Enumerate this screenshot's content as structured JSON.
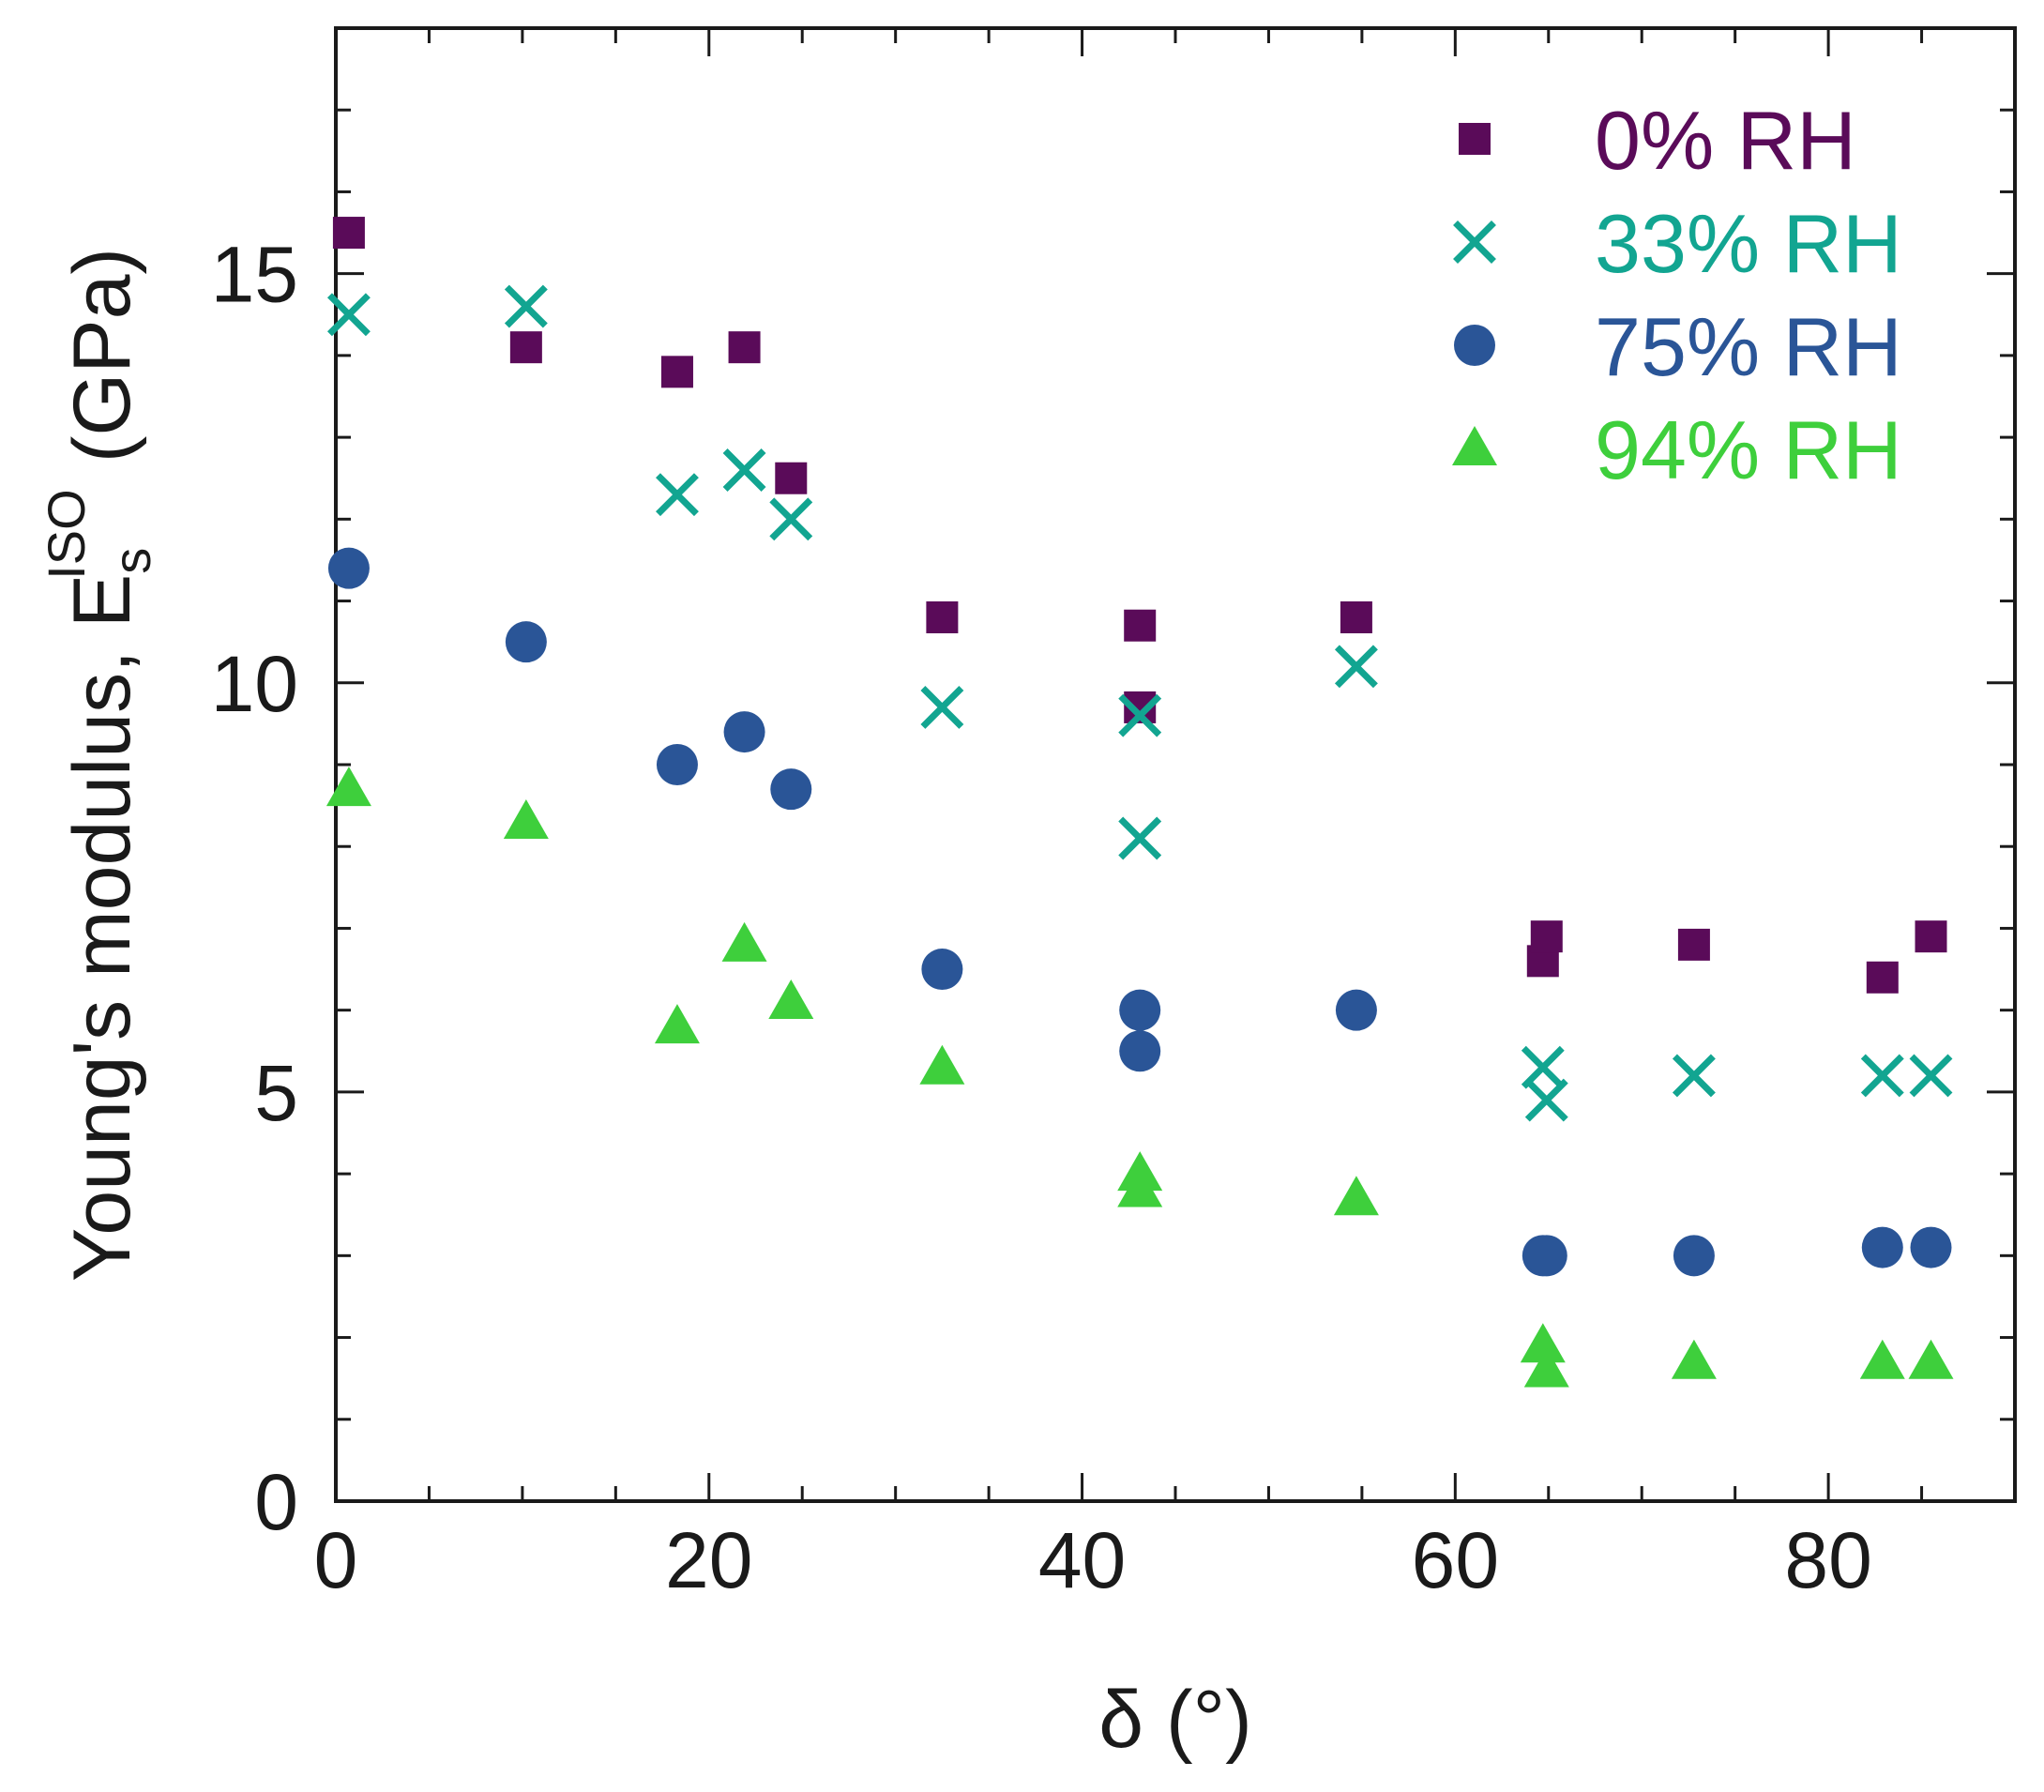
{
  "chart_data": {
    "type": "scatter",
    "title": "",
    "xlabel": "δ (°)",
    "ylabel": {
      "main": "Young's modulus,  E",
      "subscript": "s",
      "superscript": "ISO",
      "unit": "(GPa)"
    },
    "xlim": [
      0,
      90
    ],
    "ylim": [
      0,
      18
    ],
    "x_ticks": [
      0,
      20,
      40,
      60,
      80
    ],
    "x_tick_labels": [
      "0",
      "20",
      "40",
      "60",
      "80"
    ],
    "y_ticks": [
      0,
      5,
      10,
      15
    ],
    "y_tick_labels": [
      "0",
      "5",
      "10",
      "15"
    ],
    "grid": false,
    "legend_position": "top-right",
    "series": [
      {
        "name": "0% RH",
        "marker": "square",
        "color": "#5a0b59",
        "points": [
          [
            0.7,
            15.5
          ],
          [
            10.2,
            14.1
          ],
          [
            18.3,
            13.8
          ],
          [
            21.9,
            14.1
          ],
          [
            24.4,
            12.5
          ],
          [
            32.5,
            10.8
          ],
          [
            43.1,
            10.7
          ],
          [
            43.1,
            9.7
          ],
          [
            54.7,
            10.8
          ],
          [
            64.7,
            6.6
          ],
          [
            64.9,
            6.9
          ],
          [
            72.8,
            6.8
          ],
          [
            82.9,
            6.4
          ],
          [
            85.5,
            6.9
          ]
        ]
      },
      {
        "name": "33% RH",
        "marker": "x",
        "color": "#12a591",
        "points": [
          [
            0.7,
            14.5
          ],
          [
            10.2,
            14.6
          ],
          [
            18.3,
            12.3
          ],
          [
            21.9,
            12.6
          ],
          [
            24.4,
            12.0
          ],
          [
            32.5,
            9.7
          ],
          [
            43.1,
            9.6
          ],
          [
            43.1,
            8.1
          ],
          [
            54.7,
            10.2
          ],
          [
            64.7,
            5.3
          ],
          [
            64.9,
            4.9
          ],
          [
            72.8,
            5.2
          ],
          [
            82.9,
            5.2
          ],
          [
            85.5,
            5.2
          ]
        ]
      },
      {
        "name": "75% RH",
        "marker": "circle",
        "color": "#2a5597",
        "points": [
          [
            0.7,
            11.4
          ],
          [
            10.2,
            10.5
          ],
          [
            18.3,
            9.0
          ],
          [
            21.9,
            9.4
          ],
          [
            24.4,
            8.7
          ],
          [
            32.5,
            6.5
          ],
          [
            43.1,
            6.0
          ],
          [
            43.1,
            5.5
          ],
          [
            54.7,
            6.0
          ],
          [
            64.7,
            3.0
          ],
          [
            64.9,
            3.0
          ],
          [
            72.8,
            3.0
          ],
          [
            82.9,
            3.1
          ],
          [
            85.5,
            3.1
          ]
        ]
      },
      {
        "name": "94% RH",
        "marker": "triangle",
        "color": "#3ecf3c",
        "points": [
          [
            0.7,
            8.7
          ],
          [
            10.2,
            8.3
          ],
          [
            18.3,
            5.8
          ],
          [
            21.9,
            6.8
          ],
          [
            24.4,
            6.1
          ],
          [
            32.5,
            5.3
          ],
          [
            43.1,
            4.0
          ],
          [
            43.1,
            3.8
          ],
          [
            54.7,
            3.7
          ],
          [
            64.7,
            1.9
          ],
          [
            64.9,
            1.6
          ],
          [
            72.8,
            1.7
          ],
          [
            82.9,
            1.7
          ],
          [
            85.5,
            1.7
          ]
        ]
      }
    ]
  }
}
